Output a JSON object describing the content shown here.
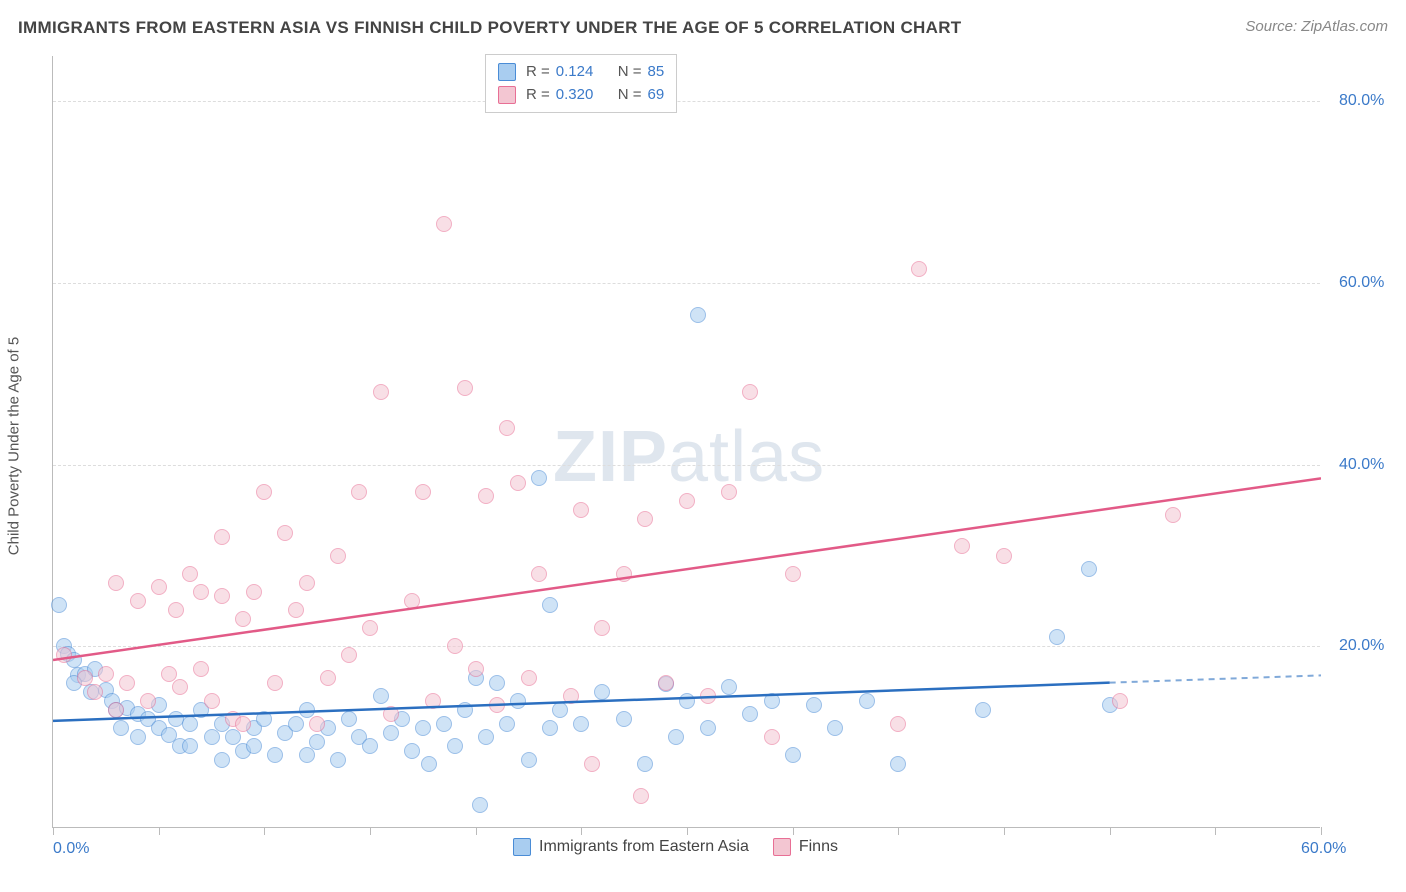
{
  "title": "IMMIGRANTS FROM EASTERN ASIA VS FINNISH CHILD POVERTY UNDER THE AGE OF 5 CORRELATION CHART",
  "source_label": "Source: ",
  "source_name": "ZipAtlas.com",
  "watermark": {
    "prefix": "ZIP",
    "suffix": "atlas"
  },
  "y_axis_label": "Child Poverty Under the Age of 5",
  "chart": {
    "type": "scatter",
    "background_color": "#ffffff",
    "grid_color": "#dddddd",
    "axis_color": "#bbbbbb",
    "xlim": [
      0,
      60
    ],
    "ylim": [
      0,
      85
    ],
    "x_ticks": [
      0,
      5,
      10,
      15,
      20,
      25,
      30,
      35,
      40,
      45,
      50,
      55,
      60
    ],
    "x_tick_labels": [
      {
        "v": 0,
        "t": "0.0%"
      },
      {
        "v": 60,
        "t": "60.0%"
      }
    ],
    "y_grid": [
      20,
      40,
      60,
      80
    ],
    "y_tick_labels": [
      {
        "v": 20,
        "t": "20.0%"
      },
      {
        "v": 40,
        "t": "40.0%"
      },
      {
        "v": 60,
        "t": "60.0%"
      },
      {
        "v": 80,
        "t": "80.0%"
      }
    ],
    "marker_radius": 8,
    "marker_opacity": 0.55,
    "series": [
      {
        "id": "blue",
        "label": "Immigrants from Eastern Asia",
        "fill": "#a9cdf0",
        "stroke": "#4a8cd6",
        "trend_color": "#2b6fc0",
        "R": "0.124",
        "N": "85",
        "trend": {
          "x0": 0,
          "y0": 11.8,
          "x1_solid": 50,
          "y1_solid": 16.0,
          "x1": 60,
          "y1": 16.8
        },
        "points": [
          [
            0.3,
            24.5
          ],
          [
            0.5,
            20.0
          ],
          [
            0.7,
            19.2
          ],
          [
            1.0,
            18.5
          ],
          [
            1.2,
            16.8
          ],
          [
            1.5,
            17.0
          ],
          [
            1.0,
            16.0
          ],
          [
            1.8,
            15.0
          ],
          [
            2.5,
            15.2
          ],
          [
            2.0,
            17.5
          ],
          [
            2.8,
            14.0
          ],
          [
            3.0,
            13.0
          ],
          [
            3.5,
            13.2
          ],
          [
            3.2,
            11.0
          ],
          [
            4.0,
            12.5
          ],
          [
            4.5,
            12.0
          ],
          [
            4.0,
            10.0
          ],
          [
            5.0,
            13.5
          ],
          [
            5.0,
            11.0
          ],
          [
            5.5,
            10.2
          ],
          [
            6.0,
            9.0
          ],
          [
            5.8,
            12.0
          ],
          [
            6.5,
            11.5
          ],
          [
            6.5,
            9.0
          ],
          [
            7.0,
            13.0
          ],
          [
            7.5,
            10.0
          ],
          [
            8.0,
            7.5
          ],
          [
            8.0,
            11.5
          ],
          [
            8.5,
            10.0
          ],
          [
            9.0,
            8.5
          ],
          [
            9.5,
            11.0
          ],
          [
            9.5,
            9.0
          ],
          [
            10.0,
            12.0
          ],
          [
            10.5,
            8.0
          ],
          [
            11.0,
            10.5
          ],
          [
            11.5,
            11.5
          ],
          [
            12.0,
            8.0
          ],
          [
            12.0,
            13.0
          ],
          [
            12.5,
            9.5
          ],
          [
            13.0,
            11.0
          ],
          [
            13.5,
            7.5
          ],
          [
            14.0,
            12.0
          ],
          [
            14.5,
            10.0
          ],
          [
            15.0,
            9.0
          ],
          [
            15.5,
            14.5
          ],
          [
            16.0,
            10.5
          ],
          [
            16.5,
            12.0
          ],
          [
            17.0,
            8.5
          ],
          [
            17.5,
            11.0
          ],
          [
            17.8,
            7.0
          ],
          [
            18.5,
            11.5
          ],
          [
            19.0,
            9.0
          ],
          [
            19.5,
            13.0
          ],
          [
            20.0,
            16.5
          ],
          [
            20.2,
            2.5
          ],
          [
            20.5,
            10.0
          ],
          [
            21.0,
            16.0
          ],
          [
            21.5,
            11.5
          ],
          [
            22.0,
            14.0
          ],
          [
            22.5,
            7.5
          ],
          [
            23.5,
            11.0
          ],
          [
            23.0,
            38.5
          ],
          [
            23.5,
            24.5
          ],
          [
            24.0,
            13.0
          ],
          [
            25.0,
            11.5
          ],
          [
            26.0,
            15.0
          ],
          [
            27.0,
            12.0
          ],
          [
            28.0,
            7.0
          ],
          [
            29.0,
            15.8
          ],
          [
            29.5,
            10.0
          ],
          [
            30.0,
            14.0
          ],
          [
            30.5,
            56.5
          ],
          [
            31.0,
            11.0
          ],
          [
            32.0,
            15.5
          ],
          [
            33.0,
            12.5
          ],
          [
            34.0,
            14.0
          ],
          [
            35.0,
            8.0
          ],
          [
            36.0,
            13.5
          ],
          [
            37.0,
            11.0
          ],
          [
            38.5,
            14.0
          ],
          [
            40.0,
            7.0
          ],
          [
            44.0,
            13.0
          ],
          [
            47.5,
            21.0
          ],
          [
            49.0,
            28.5
          ],
          [
            50.0,
            13.5
          ]
        ]
      },
      {
        "id": "pink",
        "label": "Finns",
        "fill": "#f3c6d2",
        "stroke": "#e86f95",
        "trend_color": "#e25a87",
        "R": "0.320",
        "N": "69",
        "trend": {
          "x0": 0,
          "y0": 18.5,
          "x1_solid": 60,
          "y1_solid": 38.5,
          "x1": 60,
          "y1": 38.5
        },
        "points": [
          [
            0.5,
            19.0
          ],
          [
            1.5,
            16.5
          ],
          [
            2.0,
            15.0
          ],
          [
            2.5,
            17.0
          ],
          [
            3.0,
            13.0
          ],
          [
            3.0,
            27.0
          ],
          [
            3.5,
            16.0
          ],
          [
            4.0,
            25.0
          ],
          [
            4.5,
            14.0
          ],
          [
            5.0,
            26.5
          ],
          [
            5.5,
            17.0
          ],
          [
            5.8,
            24.0
          ],
          [
            6.0,
            15.5
          ],
          [
            6.5,
            28.0
          ],
          [
            7.0,
            17.5
          ],
          [
            7.0,
            26.0
          ],
          [
            7.5,
            14.0
          ],
          [
            8.0,
            25.5
          ],
          [
            8.0,
            32.0
          ],
          [
            8.5,
            12.0
          ],
          [
            9.0,
            23.0
          ],
          [
            9.0,
            11.5
          ],
          [
            9.5,
            26.0
          ],
          [
            10.0,
            37.0
          ],
          [
            10.5,
            16.0
          ],
          [
            11.0,
            32.5
          ],
          [
            11.5,
            24.0
          ],
          [
            12.0,
            27.0
          ],
          [
            12.5,
            11.5
          ],
          [
            13.0,
            16.5
          ],
          [
            13.5,
            30.0
          ],
          [
            14.0,
            19.0
          ],
          [
            14.5,
            37.0
          ],
          [
            15.0,
            22.0
          ],
          [
            15.5,
            48.0
          ],
          [
            16.0,
            12.5
          ],
          [
            17.0,
            25.0
          ],
          [
            17.5,
            37.0
          ],
          [
            18.0,
            14.0
          ],
          [
            18.5,
            66.5
          ],
          [
            19.0,
            20.0
          ],
          [
            19.5,
            48.5
          ],
          [
            20.0,
            17.5
          ],
          [
            20.5,
            36.5
          ],
          [
            21.0,
            13.5
          ],
          [
            21.5,
            44.0
          ],
          [
            22.0,
            38.0
          ],
          [
            22.5,
            16.5
          ],
          [
            23.0,
            28.0
          ],
          [
            24.5,
            14.5
          ],
          [
            25.0,
            35.0
          ],
          [
            25.5,
            7.0
          ],
          [
            26.0,
            22.0
          ],
          [
            27.0,
            28.0
          ],
          [
            28.0,
            34.0
          ],
          [
            29.0,
            16.0
          ],
          [
            30.0,
            36.0
          ],
          [
            31.0,
            14.5
          ],
          [
            32.0,
            37.0
          ],
          [
            33.0,
            48.0
          ],
          [
            34.0,
            10.0
          ],
          [
            35.0,
            28.0
          ],
          [
            27.8,
            3.5
          ],
          [
            40.0,
            11.5
          ],
          [
            41.0,
            61.5
          ],
          [
            43.0,
            31.0
          ],
          [
            45.0,
            30.0
          ],
          [
            50.5,
            14.0
          ],
          [
            53.0,
            34.5
          ]
        ]
      }
    ]
  },
  "legend_stats": {
    "R_label": "R =",
    "N_label": "N ="
  }
}
